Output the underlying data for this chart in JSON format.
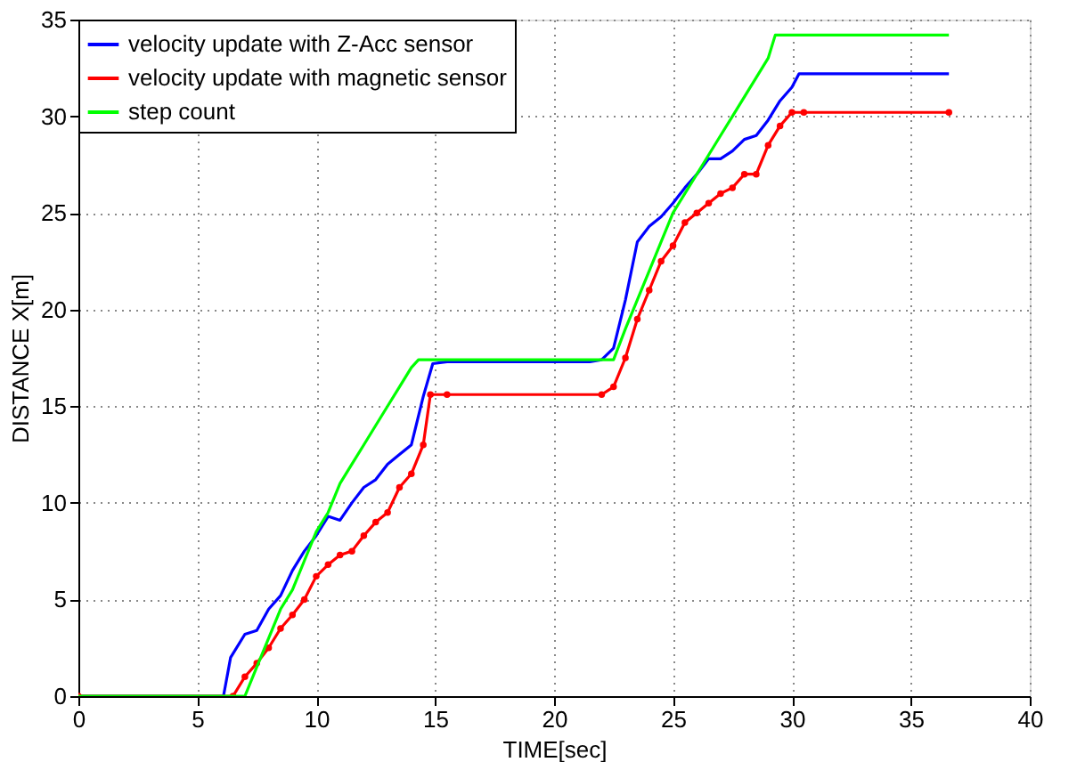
{
  "chart_data": {
    "type": "line",
    "xlabel": "TIME[sec]",
    "ylabel": "DISTANCE X[m]",
    "xlim": [
      0,
      40
    ],
    "xticks": [
      0,
      5,
      10,
      15,
      20,
      25,
      30,
      35,
      40
    ],
    "ylim": [
      0,
      35
    ],
    "yticks": [
      0,
      5,
      10,
      15,
      20,
      25,
      30,
      35
    ],
    "grid": true,
    "legend": "top left",
    "line_style": "solid",
    "series": [
      {
        "name": "velocity update with Z-Acc sensor",
        "color": "#0000ff",
        "marker": "none",
        "x": [
          0,
          6.1,
          6.4,
          7,
          7.5,
          8,
          8.5,
          9,
          9.5,
          10,
          10.5,
          11,
          11.5,
          12,
          12.5,
          13,
          13.5,
          14,
          14.5,
          14.9,
          15.5,
          21.5,
          22,
          22.5,
          23,
          23.5,
          24,
          24.5,
          25,
          25.5,
          26,
          26.5,
          27,
          27.5,
          28,
          28.5,
          29,
          29.5,
          30,
          30.3,
          36.6
        ],
        "values": [
          0,
          0,
          2,
          3.2,
          3.4,
          4.5,
          5.2,
          6.5,
          7.5,
          8.3,
          9.3,
          9.1,
          10,
          10.8,
          11.2,
          12,
          12.5,
          13,
          15.5,
          17.2,
          17.3,
          17.3,
          17.4,
          18,
          20.5,
          23.5,
          24.3,
          24.8,
          25.5,
          26.3,
          27,
          27.8,
          27.8,
          28.2,
          28.8,
          29,
          29.8,
          30.8,
          31.5,
          32.2,
          32.2
        ]
      },
      {
        "name": "velocity update with magnetic sensor",
        "color": "#ff0000",
        "marker": "circle",
        "x": [
          0,
          6.5,
          7,
          7.5,
          8,
          8.5,
          9,
          9.5,
          10,
          10.5,
          11,
          11.5,
          12,
          12.5,
          13,
          13.5,
          14,
          14.5,
          14.8,
          15.5,
          22,
          22.5,
          23,
          23.5,
          24,
          24.5,
          25,
          25.5,
          26,
          26.5,
          27,
          27.5,
          28,
          28.5,
          29,
          29.5,
          30,
          30.5,
          36.6
        ],
        "values": [
          0,
          0,
          1,
          1.7,
          2.5,
          3.5,
          4.2,
          5,
          6.2,
          6.8,
          7.3,
          7.5,
          8.3,
          9,
          9.5,
          10.8,
          11.5,
          13,
          15.6,
          15.6,
          15.6,
          16,
          17.5,
          19.5,
          21,
          22.5,
          23.3,
          24.5,
          25,
          25.5,
          26,
          26.3,
          27,
          27,
          28.5,
          29.5,
          30.2,
          30.2,
          30.2
        ]
      },
      {
        "name": "step count",
        "color": "#00ff00",
        "marker": "none",
        "x": [
          0,
          7,
          7.5,
          8,
          8.5,
          9,
          9.5,
          10,
          10.5,
          11,
          11.5,
          12,
          12.5,
          13,
          13.5,
          14,
          14.3,
          22.5,
          23,
          23.5,
          24,
          24.5,
          25,
          25.5,
          26,
          26.5,
          27,
          27.5,
          28,
          28.5,
          29,
          29.3,
          36.6
        ],
        "values": [
          0,
          0,
          1.5,
          3,
          4.5,
          5.5,
          7,
          8.5,
          9.5,
          11,
          12,
          13,
          14,
          15,
          16,
          17,
          17.4,
          17.4,
          19,
          20.5,
          22,
          23.5,
          25,
          26,
          27,
          28,
          29,
          30,
          31,
          32,
          33,
          34.2,
          34.2
        ]
      }
    ]
  }
}
